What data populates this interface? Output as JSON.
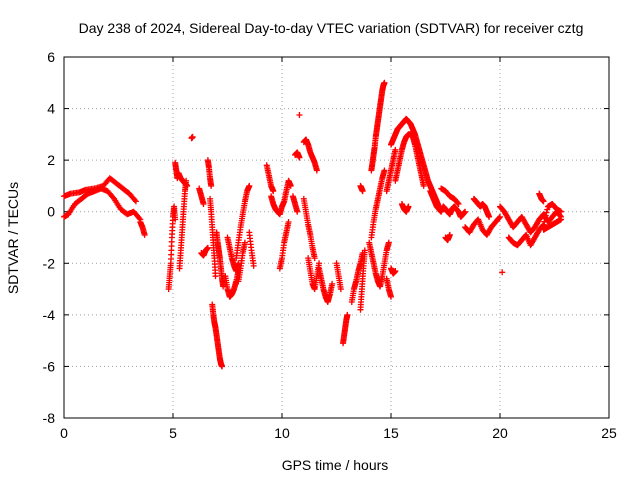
{
  "chart_data": {
    "type": "scatter",
    "title": "Day 238 of 2024, Sidereal Day-to-day VTEC variation (SDTVAR) for receiver cztg",
    "xlabel": "GPS time / hours",
    "ylabel": "SDTVAR / TECUs",
    "xlim": [
      0,
      25
    ],
    "ylim": [
      -8,
      6
    ],
    "xticks": [
      0,
      5,
      10,
      15,
      20,
      25
    ],
    "yticks": [
      -8,
      -6,
      -4,
      -2,
      0,
      2,
      4,
      6
    ],
    "grid": true,
    "marker": "+",
    "color": "#ff0000",
    "segments": [
      {
        "x": [
          0.0,
          0.3,
          0.7,
          1.0,
          1.4,
          1.8,
          2.1,
          2.4,
          2.7,
          3.0,
          3.3
        ],
        "y": [
          0.6,
          0.7,
          0.75,
          0.85,
          0.9,
          1.0,
          1.3,
          1.1,
          0.9,
          0.7,
          0.4
        ]
      },
      {
        "x": [
          0.0,
          0.2,
          0.5,
          0.8,
          1.1,
          1.4,
          1.7,
          2.0,
          2.3,
          2.6,
          2.9,
          3.2,
          3.5
        ],
        "y": [
          -0.2,
          -0.1,
          0.3,
          0.5,
          0.7,
          0.8,
          0.9,
          0.8,
          0.5,
          0.1,
          -0.1,
          0.0,
          -0.3
        ]
      },
      {
        "x": [
          3.5,
          3.6,
          3.7
        ],
        "y": [
          -0.4,
          -0.6,
          -0.9
        ]
      },
      {
        "x": [
          4.8,
          4.85,
          4.9,
          4.95,
          5.0,
          5.05,
          5.1
        ],
        "y": [
          -3.0,
          -2.5,
          -2.0,
          -1.0,
          -0.2,
          0.2,
          -0.3
        ]
      },
      {
        "x": [
          5.1,
          5.15,
          5.2
        ],
        "y": [
          1.9,
          1.6,
          1.3
        ]
      },
      {
        "x": [
          5.25,
          5.35,
          5.45,
          5.55,
          5.65
        ],
        "y": [
          1.5,
          1.3,
          1.2,
          1.1,
          1.0
        ]
      },
      {
        "x": [
          5.3,
          5.35,
          5.4,
          5.45,
          5.5,
          5.55,
          5.6
        ],
        "y": [
          -2.2,
          -1.6,
          -1.0,
          -0.4,
          0.2,
          0.8,
          1.2
        ]
      },
      {
        "x": [
          5.85,
          5.9
        ],
        "y": [
          2.85,
          2.9
        ]
      },
      {
        "x": [
          6.2,
          6.3,
          6.4
        ],
        "y": [
          0.9,
          0.6,
          0.3
        ]
      },
      {
        "x": [
          6.3,
          6.4,
          6.5,
          6.6
        ],
        "y": [
          -1.6,
          -1.7,
          -1.5,
          -1.4
        ]
      },
      {
        "x": [
          6.6,
          6.65,
          6.7,
          6.75
        ],
        "y": [
          2.0,
          1.7,
          1.3,
          1.0
        ]
      },
      {
        "x": [
          6.7,
          6.75,
          6.8,
          6.85,
          6.9,
          6.95
        ],
        "y": [
          0.5,
          0.0,
          -0.6,
          -1.2,
          -1.8,
          -2.5
        ]
      },
      {
        "x": [
          6.8,
          6.85,
          6.9,
          6.95,
          7.0,
          7.05,
          7.1,
          7.15,
          7.2,
          7.25
        ],
        "y": [
          -3.6,
          -4.0,
          -4.3,
          -4.5,
          -4.8,
          -5.1,
          -5.4,
          -5.7,
          -5.9,
          -6.0
        ]
      },
      {
        "x": [
          7.0,
          7.05,
          7.1,
          7.15,
          7.2,
          7.25,
          7.3
        ],
        "y": [
          -0.8,
          -1.2,
          -1.5,
          -1.8,
          -2.2,
          -2.6,
          -2.9
        ]
      },
      {
        "x": [
          7.4,
          7.5,
          7.6,
          7.7,
          7.8,
          7.9,
          8.0
        ],
        "y": [
          -2.5,
          -3.0,
          -3.3,
          -3.2,
          -3.0,
          -2.7,
          -2.3
        ]
      },
      {
        "x": [
          7.5,
          7.6,
          7.7,
          7.8,
          7.9,
          8.0
        ],
        "y": [
          -1.0,
          -1.4,
          -1.8,
          -2.1,
          -2.3,
          -2.0
        ]
      },
      {
        "x": [
          7.9,
          8.0,
          8.1,
          8.2,
          8.3,
          8.4,
          8.5
        ],
        "y": [
          -1.8,
          -1.2,
          -0.6,
          -0.1,
          0.4,
          0.8,
          1.0
        ]
      },
      {
        "x": [
          8.0,
          8.1,
          8.2,
          8.3
        ],
        "y": [
          -2.7,
          -2.2,
          -1.6,
          -1.2
        ]
      },
      {
        "x": [
          8.5,
          8.6,
          8.7
        ],
        "y": [
          -0.8,
          -1.5,
          -2.1
        ]
      },
      {
        "x": [
          9.3,
          9.4,
          9.5,
          9.6
        ],
        "y": [
          1.8,
          1.4,
          1.0,
          0.8
        ]
      },
      {
        "x": [
          9.5,
          9.6,
          9.7,
          9.8,
          9.9,
          10.0,
          10.1,
          10.2,
          10.3,
          10.4
        ],
        "y": [
          0.6,
          0.3,
          0.1,
          0.0,
          -0.1,
          0.2,
          0.4,
          0.8,
          1.2,
          1.0
        ]
      },
      {
        "x": [
          9.9,
          10.0,
          10.1,
          10.2,
          10.3
        ],
        "y": [
          -2.2,
          -1.8,
          -1.2,
          -0.8,
          -0.4
        ]
      },
      {
        "x": [
          10.5,
          10.6,
          10.7
        ],
        "y": [
          0.6,
          0.3,
          0.0
        ]
      },
      {
        "x": [
          10.6,
          10.7,
          10.8
        ],
        "y": [
          2.2,
          2.3,
          2.1
        ]
      },
      {
        "x": [
          10.8
        ],
        "y": [
          3.75
        ]
      },
      {
        "x": [
          11.0,
          11.1,
          11.2,
          11.3,
          11.4,
          11.5,
          11.6
        ],
        "y": [
          2.7,
          2.8,
          2.6,
          2.3,
          2.1,
          1.9,
          1.6
        ]
      },
      {
        "x": [
          11.0,
          11.1,
          11.2,
          11.3,
          11.4,
          11.5
        ],
        "y": [
          0.5,
          0.0,
          -0.5,
          -0.9,
          -1.4,
          -1.8
        ]
      },
      {
        "x": [
          11.2,
          11.3,
          11.4,
          11.5,
          11.6,
          11.7
        ],
        "y": [
          -1.8,
          -2.3,
          -2.8,
          -3.0,
          -2.5,
          -2.0
        ]
      },
      {
        "x": [
          11.7,
          11.8,
          11.9,
          12.0,
          12.1,
          12.2,
          12.3
        ],
        "y": [
          -2.2,
          -2.6,
          -3.0,
          -3.3,
          -3.5,
          -3.2,
          -2.8
        ]
      },
      {
        "x": [
          12.5,
          12.6,
          12.7
        ],
        "y": [
          -2.0,
          -2.5,
          -3.0
        ]
      },
      {
        "x": [
          12.8,
          12.85,
          12.9,
          12.95,
          13.0
        ],
        "y": [
          -5.1,
          -4.8,
          -4.5,
          -4.2,
          -4.0
        ]
      },
      {
        "x": [
          13.2,
          13.3,
          13.4,
          13.5,
          13.6,
          13.7
        ],
        "y": [
          -3.5,
          -3.0,
          -2.7,
          -2.3,
          -2.0,
          -1.6
        ]
      },
      {
        "x": [
          13.6,
          13.65,
          13.7
        ],
        "y": [
          1.0,
          0.9,
          0.8
        ]
      },
      {
        "x": [
          13.6,
          13.65,
          13.7,
          13.75,
          13.8
        ],
        "y": [
          -3.8,
          -3.2,
          -2.6,
          -2.0,
          -1.5
        ]
      },
      {
        "x": [
          14.0,
          14.1,
          14.2,
          14.3,
          14.4,
          14.5,
          14.6,
          14.7,
          14.8,
          14.9
        ],
        "y": [
          -1.2,
          -1.6,
          -2.0,
          -2.4,
          -2.7,
          -2.9,
          -2.5,
          -2.0,
          -1.5,
          -1.2
        ]
      },
      {
        "x": [
          14.1,
          14.15,
          14.2,
          14.25,
          14.3,
          14.35,
          14.4,
          14.45,
          14.5,
          14.55,
          14.6,
          14.65,
          14.7
        ],
        "y": [
          1.6,
          1.9,
          2.2,
          2.5,
          2.9,
          3.2,
          3.5,
          3.8,
          4.1,
          4.4,
          4.7,
          4.9,
          5.0
        ]
      },
      {
        "x": [
          14.1,
          14.2,
          14.3,
          14.4,
          14.5,
          14.6,
          14.7
        ],
        "y": [
          -1.0,
          -0.4,
          0.1,
          0.5,
          0.9,
          1.3,
          1.6
        ]
      },
      {
        "x": [
          14.8,
          14.9,
          15.0,
          15.1,
          15.2
        ],
        "y": [
          0.8,
          1.2,
          1.6,
          2.0,
          2.4
        ]
      },
      {
        "x": [
          14.8,
          14.9,
          15.0
        ],
        "y": [
          -2.6,
          -3.0,
          -3.3
        ]
      },
      {
        "x": [
          15.0,
          15.1,
          15.2
        ],
        "y": [
          -2.2,
          -2.4,
          -2.3
        ]
      },
      {
        "x": [
          15.0,
          15.1,
          15.2,
          15.3,
          15.4,
          15.5,
          15.6,
          15.7,
          15.8,
          15.9,
          16.0,
          16.1,
          16.2,
          16.3,
          16.4,
          16.5,
          16.6,
          16.7,
          16.8,
          16.9,
          17.0,
          17.1,
          17.2
        ],
        "y": [
          2.6,
          2.8,
          3.0,
          3.2,
          3.3,
          3.4,
          3.5,
          3.6,
          3.5,
          3.4,
          3.2,
          3.0,
          2.7,
          2.4,
          2.1,
          1.8,
          1.5,
          1.2,
          1.0,
          0.8,
          0.6,
          0.4,
          0.2
        ]
      },
      {
        "x": [
          15.2,
          15.3,
          15.4,
          15.5,
          15.6,
          15.7,
          15.8,
          15.9,
          16.0,
          16.1,
          16.2,
          16.3,
          16.4,
          16.5
        ],
        "y": [
          1.2,
          1.6,
          2.0,
          2.4,
          2.7,
          2.9,
          3.0,
          3.0,
          2.9,
          2.6,
          2.2,
          1.8,
          1.4,
          1.0
        ]
      },
      {
        "x": [
          15.5,
          15.6,
          15.7,
          15.8
        ],
        "y": [
          0.3,
          0.1,
          0.0,
          0.2
        ]
      },
      {
        "x": [
          16.8,
          16.9,
          17.0,
          17.1,
          17.2,
          17.3,
          17.4,
          17.5,
          17.6,
          17.7,
          17.8,
          17.9,
          18.0,
          18.1,
          18.2,
          18.3,
          18.4
        ],
        "y": [
          0.8,
          0.6,
          0.4,
          0.2,
          0.1,
          0.0,
          0.2,
          0.1,
          0.0,
          -0.1,
          0.1,
          0.2,
          0.1,
          0.0,
          -0.2,
          -0.1,
          0.0
        ]
      },
      {
        "x": [
          17.3,
          17.5,
          17.7,
          17.9,
          18.1
        ],
        "y": [
          0.9,
          0.8,
          0.6,
          0.5,
          0.3
        ]
      },
      {
        "x": [
          17.5,
          17.6,
          17.7
        ],
        "y": [
          -1.0,
          -1.1,
          -0.9
        ]
      },
      {
        "x": [
          18.4,
          18.6,
          18.8,
          19.0,
          19.2,
          19.4,
          19.6,
          19.8,
          20.0
        ],
        "y": [
          -0.6,
          -0.8,
          -0.5,
          -0.3,
          -0.7,
          -0.9,
          -0.6,
          -0.4,
          -0.2
        ]
      },
      {
        "x": [
          18.8,
          18.9,
          19.0,
          19.1,
          19.2,
          19.3,
          19.4,
          19.5
        ],
        "y": [
          0.5,
          0.4,
          0.3,
          0.2,
          0.3,
          0.2,
          0.0,
          -0.2
        ]
      },
      {
        "x": [
          20.1
        ],
        "y": [
          -2.35
        ]
      },
      {
        "x": [
          20.0,
          20.2,
          20.4,
          20.6,
          20.8,
          21.0,
          21.2,
          21.4,
          21.6,
          21.8,
          22.0,
          22.2,
          22.4,
          22.6,
          22.8
        ],
        "y": [
          0.2,
          0.0,
          -0.3,
          -0.6,
          -0.4,
          -0.2,
          -0.5,
          -0.8,
          -0.6,
          -0.3,
          -0.1,
          -0.4,
          -0.2,
          0.0,
          -0.2
        ]
      },
      {
        "x": [
          20.4,
          20.6,
          20.8,
          21.0,
          21.2,
          21.4,
          21.6,
          21.8,
          22.0,
          22.2,
          22.4,
          22.6,
          22.8
        ],
        "y": [
          -1.0,
          -1.2,
          -1.3,
          -1.1,
          -0.9,
          -1.3,
          -1.0,
          -0.7,
          -0.5,
          0.2,
          0.3,
          0.1,
          0.0
        ]
      },
      {
        "x": [
          21.8,
          21.9,
          22.0
        ],
        "y": [
          0.7,
          0.5,
          0.4
        ]
      },
      {
        "x": [
          22.0,
          22.2,
          22.4,
          22.6,
          22.8
        ],
        "y": [
          -0.7,
          -0.6,
          -0.5,
          -0.4,
          -0.3
        ]
      }
    ]
  }
}
